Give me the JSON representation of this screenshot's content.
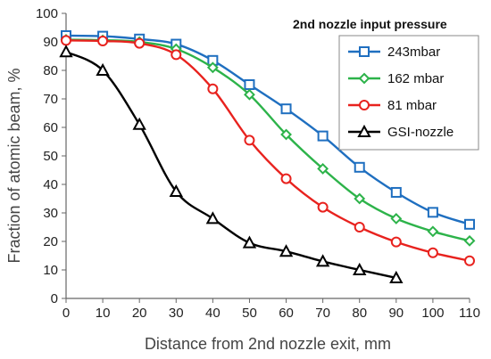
{
  "chart_data": {
    "type": "line",
    "title": "",
    "xlabel": "Distance from 2nd nozzle exit,  mm",
    "ylabel": "Fraction of atomic beam,  %",
    "xlim": [
      0,
      110
    ],
    "ylim": [
      0,
      100
    ],
    "x_ticks": [
      0,
      10,
      20,
      30,
      40,
      50,
      60,
      70,
      80,
      90,
      100,
      110
    ],
    "y_ticks": [
      0,
      10,
      20,
      30,
      40,
      50,
      60,
      70,
      80,
      90,
      100
    ],
    "grid": false,
    "legend": {
      "title": "2nd nozzle input pressure",
      "placement": "top-right"
    },
    "series": [
      {
        "name": "243mbar",
        "color": "#1f6fc0",
        "marker": "square",
        "x": [
          0,
          10,
          20,
          30,
          40,
          50,
          60,
          70,
          80,
          90,
          100,
          110
        ],
        "y": [
          92.2,
          92.0,
          91.0,
          89.2,
          83.5,
          75.0,
          66.5,
          57.0,
          46.0,
          37.2,
          30.2,
          26.0
        ]
      },
      {
        "name": "162 mbar",
        "color": "#2db34a",
        "marker": "diamond",
        "x": [
          0,
          10,
          20,
          30,
          40,
          50,
          60,
          70,
          80,
          90,
          100,
          110
        ],
        "y": [
          90.8,
          90.6,
          90.0,
          87.5,
          81.0,
          71.5,
          57.5,
          45.5,
          35.0,
          28.0,
          23.5,
          20.2
        ]
      },
      {
        "name": "81 mbar",
        "color": "#e8221e",
        "marker": "circle",
        "x": [
          0,
          10,
          20,
          30,
          40,
          50,
          60,
          70,
          80,
          90,
          100,
          110
        ],
        "y": [
          90.5,
          90.3,
          89.5,
          85.5,
          73.5,
          55.5,
          42.0,
          32.0,
          25.0,
          19.8,
          16.0,
          13.2
        ]
      },
      {
        "name": "GSI-nozzle",
        "color": "#000000",
        "marker": "triangle",
        "x": [
          0,
          10,
          20,
          30,
          40,
          50,
          60,
          70,
          80,
          90
        ],
        "y": [
          86.5,
          80.0,
          61.0,
          37.5,
          28.0,
          19.5,
          16.5,
          13.0,
          10.0,
          7.2
        ]
      }
    ]
  }
}
